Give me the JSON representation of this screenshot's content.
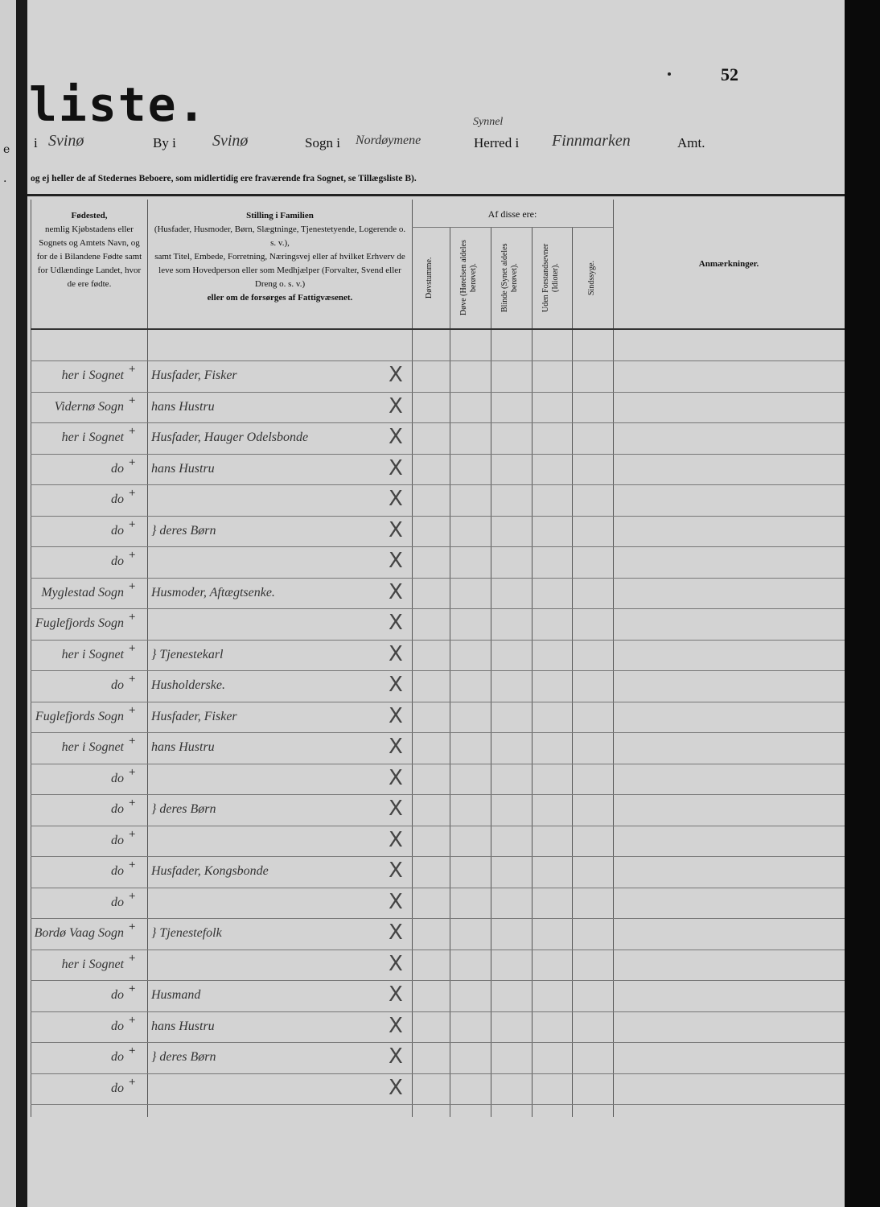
{
  "page_number": "52",
  "title_fragment": "liste.",
  "prev_page_fragments": [
    "e",
    "."
  ],
  "location": {
    "by_value": "Svinø",
    "by_label": "By i",
    "sogn_value": "Svinø",
    "sogn_label": "Sogn i",
    "herred_value": "Nordøymene",
    "herred_correction": "Synnel",
    "herred_label": "Herred i",
    "amt_value": "Finnmarken",
    "amt_label": "Amt."
  },
  "note": "og ej heller de af Stedernes Beboere, som midlertidig ere fraværende fra Sognet, se Tillægsliste B).",
  "columns": {
    "birthplace": {
      "title": "Fødested,",
      "text": "nemlig Kjøbstadens eller Sognets og Amtets Navn, og for de i Bilandene Fødte samt for Udlændinge Landet, hvor de ere fødte."
    },
    "position": {
      "title": "Stilling i Familien",
      "text1": "(Husfader, Husmoder, Børn, Slægtninge, Tjenestetyende, Logerende o. s. v.),",
      "text2": "samt Titel, Embede, Forretning, Næringsvej eller af hvilket Erhverv de leve som Hovedperson eller som Medhjælper (Forvalter, Svend eller Dreng o. s. v.)",
      "text3": "eller om de forsørges af Fattigvæsenet."
    },
    "af_disse_ere": "Af disse ere:",
    "sub": [
      "Døvstumme.",
      "Døve (Hørelsen aldeles berøvet).",
      "Blinde (Synet aldeles berøvet).",
      "Uden Forstandsevner (Idioter).",
      "Sindssyge."
    ],
    "remarks": "Anmærkninger."
  },
  "rows": [
    {
      "birthplace": "her i Sognet",
      "mark": "+",
      "position": "Husfader, Fisker",
      "x": "X"
    },
    {
      "birthplace": "Vidernø Sogn",
      "mark": "+",
      "position": "hans Hustru",
      "x": "X"
    },
    {
      "birthplace": "her i Sognet",
      "mark": "+",
      "position": "Husfader, Hauger Odelsbonde",
      "x": "X"
    },
    {
      "birthplace": "do",
      "mark": "+",
      "position": "hans Hustru",
      "x": "X"
    },
    {
      "birthplace": "do",
      "mark": "+",
      "position": "",
      "x": "X"
    },
    {
      "birthplace": "do",
      "mark": "+",
      "position": "} deres Børn",
      "x": "X"
    },
    {
      "birthplace": "do",
      "mark": "+",
      "position": "",
      "x": "X"
    },
    {
      "birthplace": "Myglestad Sogn",
      "mark": "+",
      "position": "Husmoder, Aftægtsenke.",
      "x": "X"
    },
    {
      "birthplace": "Fuglefjords Sogn",
      "mark": "+",
      "position": "",
      "x": "X"
    },
    {
      "birthplace": "her i Sognet",
      "mark": "+",
      "position": "} Tjenestekarl",
      "x": "X"
    },
    {
      "birthplace": "do",
      "mark": "+",
      "position": "Husholderske.",
      "x": "X"
    },
    {
      "birthplace": "Fuglefjords Sogn",
      "mark": "+",
      "position": "Husfader, Fisker",
      "x": "X"
    },
    {
      "birthplace": "her i Sognet",
      "mark": "+",
      "position": "hans Hustru",
      "x": "X"
    },
    {
      "birthplace": "do",
      "mark": "+",
      "position": "",
      "x": "X"
    },
    {
      "birthplace": "do",
      "mark": "+",
      "position": "} deres Børn",
      "x": "X"
    },
    {
      "birthplace": "do",
      "mark": "+",
      "position": "",
      "x": "X"
    },
    {
      "birthplace": "do",
      "mark": "+",
      "position": "Husfader, Kongsbonde",
      "x": "X"
    },
    {
      "birthplace": "do",
      "mark": "+",
      "position": "",
      "x": "X"
    },
    {
      "birthplace": "Bordø Vaag Sogn",
      "mark": "+",
      "position": "} Tjenestefolk",
      "x": "X"
    },
    {
      "birthplace": "her i Sognet",
      "mark": "+",
      "position": "",
      "x": "X"
    },
    {
      "birthplace": "do",
      "mark": "+",
      "position": "Husmand",
      "x": "X"
    },
    {
      "birthplace": "do",
      "mark": "+",
      "position": "hans Hustru",
      "x": "X"
    },
    {
      "birthplace": "do",
      "mark": "+",
      "position": "} deres Børn",
      "x": "X"
    },
    {
      "birthplace": "do",
      "mark": "+",
      "position": "",
      "x": "X"
    }
  ]
}
